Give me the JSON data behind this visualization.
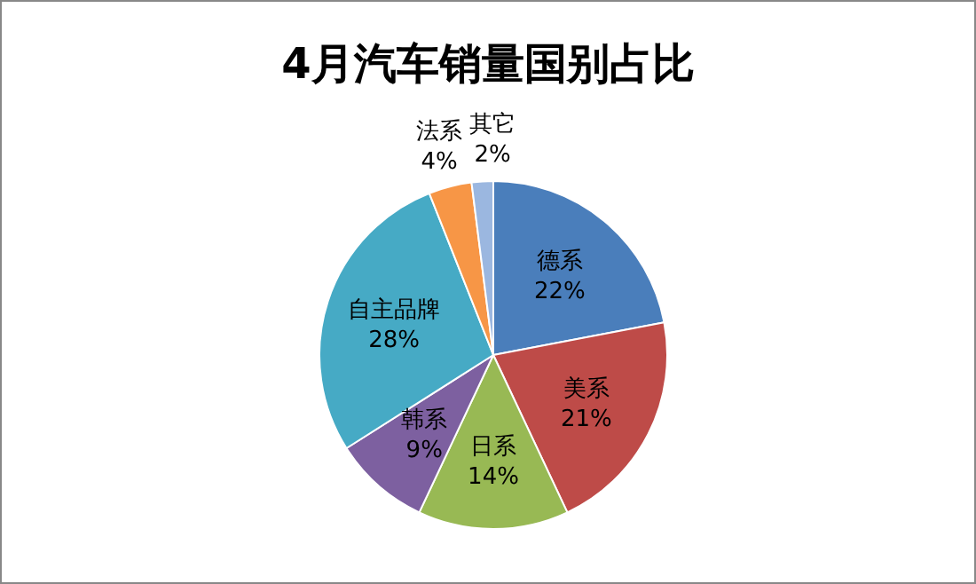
{
  "chart_data": {
    "type": "pie",
    "title": "4月汽车销量国别占比",
    "categories": [
      "德系",
      "美系",
      "日系",
      "韩系",
      "自主品牌",
      "法系",
      "其它"
    ],
    "values": [
      22,
      21,
      14,
      9,
      28,
      4,
      2
    ],
    "value_labels": [
      "22%",
      "21%",
      "14%",
      "9%",
      "28%",
      "4%",
      "2%"
    ],
    "colors": [
      "#4a7ebb",
      "#be4b48",
      "#98b954",
      "#7d60a0",
      "#46aac5",
      "#f79646",
      "#9bb7e0"
    ]
  }
}
